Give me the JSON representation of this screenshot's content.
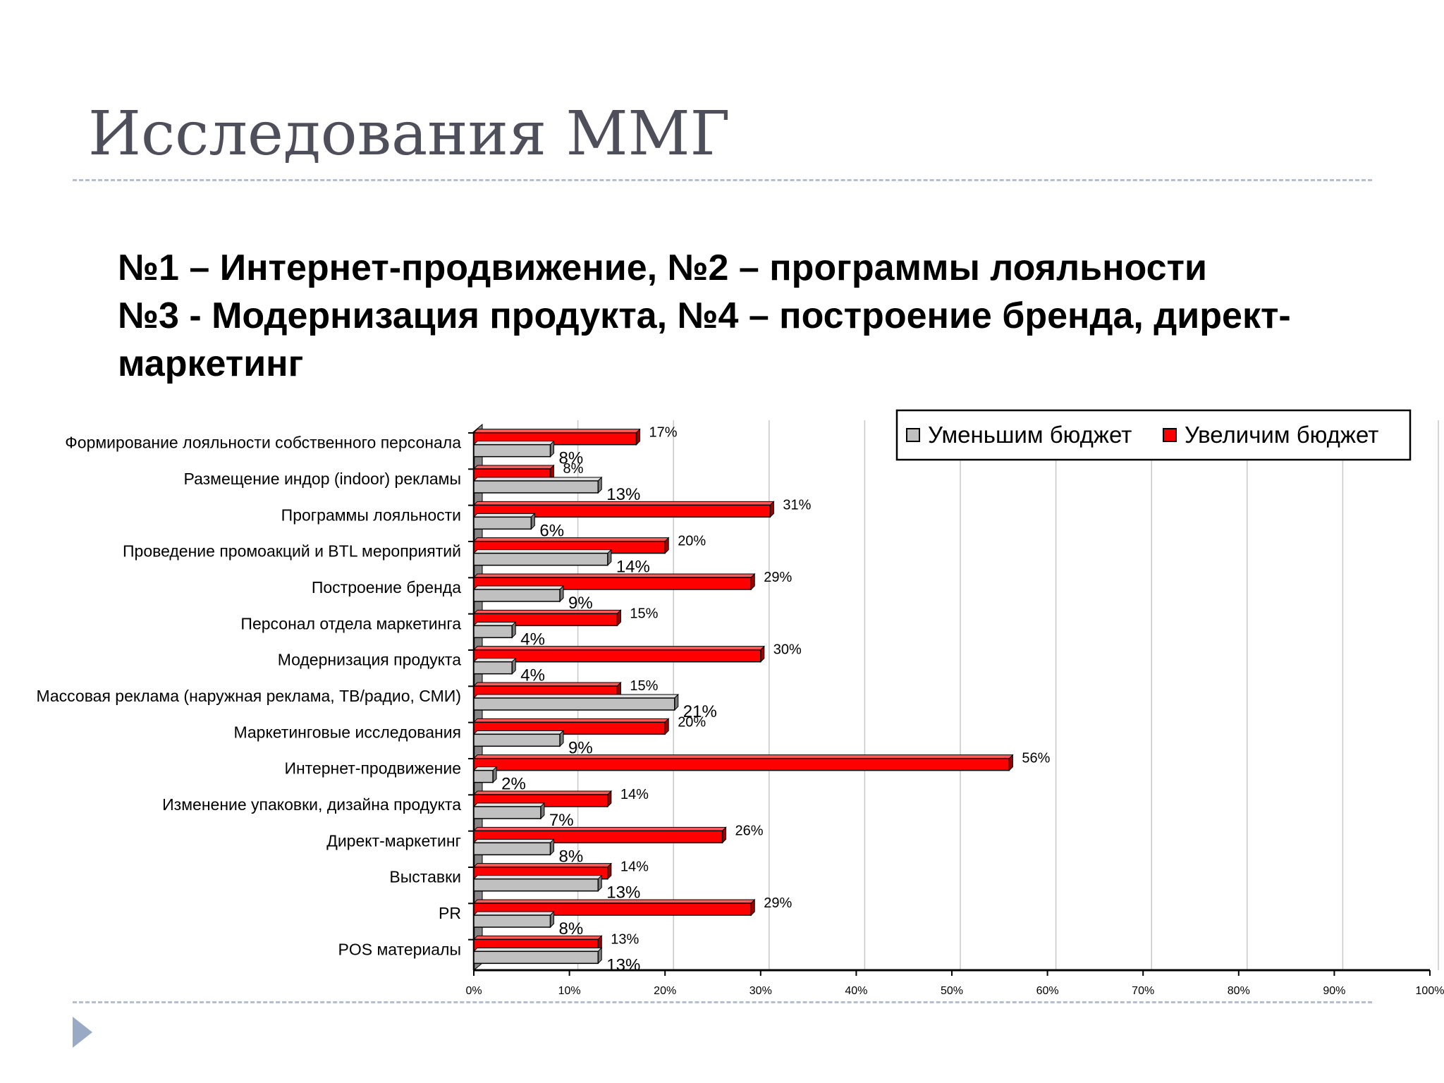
{
  "slide": {
    "title": "Исследования ММГ",
    "subtitle_lines": [
      "№1 – Интернет-продвижение, №2 – программы лояльности",
      "№3  - Модернизация продукта, №4 – построение бренда, директ-",
      "маркетинг"
    ]
  },
  "chart_data": {
    "type": "bar",
    "orientation": "horizontal",
    "title": "",
    "xlabel": "",
    "ylabel": "",
    "xlim": [
      0,
      100
    ],
    "x_ticks": [
      "0%",
      "10%",
      "20%",
      "30%",
      "40%",
      "50%",
      "60%",
      "70%",
      "80%",
      "90%",
      "100%"
    ],
    "grid": true,
    "legend_position": "top-right",
    "categories": [
      "Формирование лояльности собственного персонала",
      "Размещение индор (indoor) рекламы",
      "Программы лояльности",
      "Проведение промоакций и BTL мероприятий",
      "Построение бренда",
      "Персонал отдела маркетинга",
      "Модернизация продукта",
      "Массовая реклама (наружная реклама, ТВ/радио, СМИ)",
      "Маркетинговые исследования",
      "Интернет-продвижение",
      "Изменение упаковки, дизайна продукта",
      "Директ-маркетинг",
      "Выставки",
      "PR",
      "POS материалы"
    ],
    "series": [
      {
        "name": "Уменьшим бюджет",
        "color": "#c0c0c0",
        "values": [
          8,
          13,
          6,
          14,
          9,
          4,
          4,
          21,
          9,
          2,
          7,
          8,
          13,
          8,
          13
        ],
        "labels": [
          "8%",
          "13%",
          "6%",
          "14%",
          "9%",
          "4%",
          "4%",
          "21%",
          "9%",
          "2%",
          "7%",
          "8%",
          "13%",
          "8%",
          "13%"
        ]
      },
      {
        "name": "Увеличим бюджет",
        "color": "#ff0000",
        "values": [
          17,
          8,
          31,
          20,
          29,
          15,
          30,
          15,
          20,
          56,
          14,
          26,
          14,
          29,
          13
        ],
        "labels": [
          "17%",
          "8%",
          "31%",
          "20%",
          "29%",
          "15%",
          "30%",
          "15%",
          "20%",
          "56%",
          "14%",
          "26%",
          "14%",
          "29%",
          "13%"
        ]
      }
    ]
  }
}
